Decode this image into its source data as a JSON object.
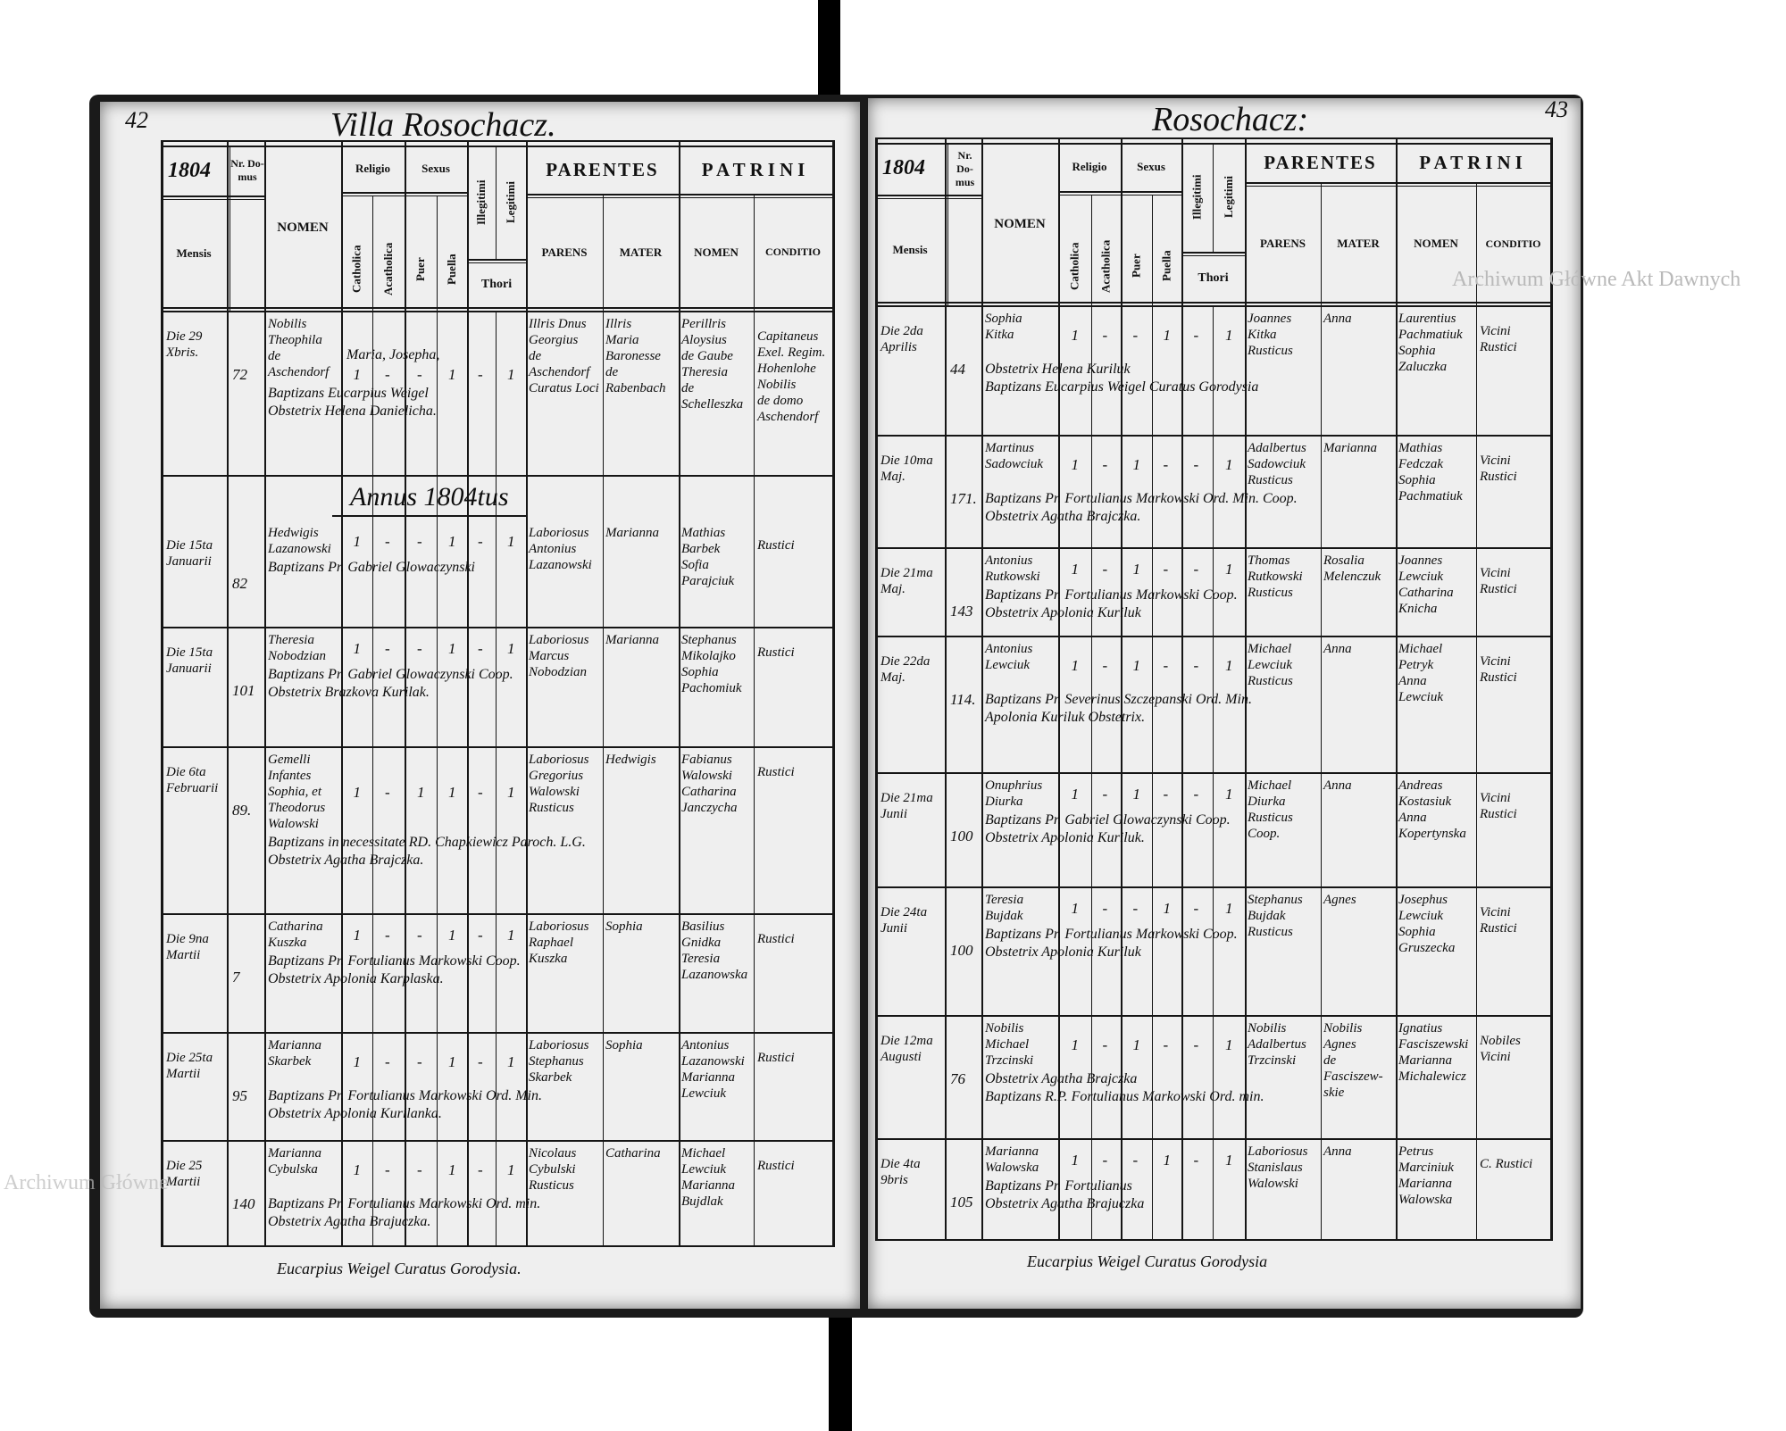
{
  "watermark": "Archiwum Główne Akt Dawnych",
  "watermark_partial": "Archiwum Główne",
  "headers": {
    "nr_domus": "Nr. Do-mus",
    "mensis": "Mensis",
    "nomen": "NOMEN",
    "religio": "Religio",
    "catholica": "Catholica",
    "acatholica": "Acatholica",
    "sexus": "Sexus",
    "puer": "Puer",
    "puella": "Puella",
    "illegitimi": "Illegitimi",
    "legitimi": "Legitimi",
    "thori": "Thori",
    "parentes": "PARENTES",
    "parens": "PARENS",
    "mater": "MATER",
    "patrini": "PATRINI",
    "patrini_nomen": "NOMEN",
    "conditio": "CONDITIO"
  },
  "pages": [
    {
      "page_number": "42",
      "title": "Villa Rosochacz.",
      "year": "1804",
      "signature": "Eucarpius Weigel Curatus Gorodysia.",
      "entries": [
        {
          "mensis": [
            "Die 29",
            "Xbris."
          ],
          "domus": "72",
          "nomen": [
            "Nobilis",
            "Theophila",
            "de",
            "Aschendorf"
          ],
          "extra": "Maria, Josepha,",
          "marks": [
            "1",
            "-",
            "-",
            "1",
            "-",
            "1"
          ],
          "parens": [
            "Illris Dnus",
            "Georgius",
            "de",
            "Aschendorf",
            "Curatus Loci"
          ],
          "mater": [
            "Illris",
            "Maria",
            "Baronesse",
            "de",
            "Rabenbach"
          ],
          "patrini": [
            "Perillris",
            "Aloysius",
            "de Gaube",
            "Theresia",
            "de",
            "Schelleszka"
          ],
          "conditio": [
            "Capitaneus",
            "Exel. Regim.",
            "Hohenlohe",
            "Nobilis",
            "de domo",
            "Aschendorf"
          ],
          "notes": [
            "Baptizans Eucarpius Weigel",
            "Obstetrix Helena Danielicha."
          ]
        },
        {
          "annus": "Annus 1804tus",
          "mensis": [
            "Die 15ta",
            "Januarii"
          ],
          "domus": "82",
          "nomen": [
            "Hedwigis",
            "Lazanowski"
          ],
          "marks": [
            "1",
            "-",
            "-",
            "1",
            "-",
            "1"
          ],
          "parens": [
            "Laboriosus",
            "Antonius",
            "Lazanowski"
          ],
          "mater": [
            "Marianna"
          ],
          "patrini": [
            "Mathias",
            "Barbek",
            "Sofia",
            "Parajciuk"
          ],
          "conditio": [
            "Rustici"
          ],
          "notes": [
            "Baptizans Pr. Gabriel Glowaczynski"
          ]
        },
        {
          "mensis": [
            "Die 15ta",
            "Januarii"
          ],
          "domus": "101",
          "nomen": [
            "Theresia",
            "Nobodzian"
          ],
          "marks": [
            "1",
            "-",
            "-",
            "1",
            "-",
            "1"
          ],
          "parens": [
            "Laboriosus",
            "Marcus",
            "Nobodzian"
          ],
          "mater": [
            "Marianna"
          ],
          "patrini": [
            "Stephanus",
            "Mikolajko",
            "Sophia",
            "Pachomiuk"
          ],
          "conditio": [
            "Rustici"
          ],
          "notes": [
            "Baptizans Pr. Gabriel Glowaczynski Coop.",
            "Obstetrix Brazkova Kurilak."
          ]
        },
        {
          "mensis": [
            "Die 6ta",
            "Februarii"
          ],
          "domus": "89.",
          "nomen": [
            "Gemelli",
            "Infantes",
            "Sophia, et",
            "Theodorus",
            "Walowski"
          ],
          "marks": [
            "1",
            "-",
            "1",
            "1",
            "-",
            "1"
          ],
          "parens": [
            "Laboriosus",
            "Gregorius",
            "Walowski",
            "Rusticus"
          ],
          "mater": [
            "Hedwigis"
          ],
          "patrini": [
            "Fabianus",
            "Walowski",
            "Catharina",
            "Janczycha"
          ],
          "conditio": [
            "Rustici"
          ],
          "notes": [
            "Baptizans in necessitate RD. Chapkiewicz Paroch. L.G.",
            "Obstetrix Agatha Brajczka."
          ]
        },
        {
          "mensis": [
            "Die 9na",
            "Martii"
          ],
          "domus": "7",
          "nomen": [
            "Catharina",
            "Kuszka"
          ],
          "marks": [
            "1",
            "-",
            "-",
            "1",
            "-",
            "1"
          ],
          "parens": [
            "Laboriosus",
            "Raphael",
            "Kuszka"
          ],
          "mater": [
            "Sophia"
          ],
          "patrini": [
            "Basilius",
            "Gnidka",
            "Teresia",
            "Lazanowska"
          ],
          "conditio": [
            "Rustici"
          ],
          "notes": [
            "Baptizans Pr. Fortulianus Markowski Coop.",
            "Obstetrix Apolonia Karplaska."
          ]
        },
        {
          "mensis": [
            "Die 25ta",
            "Martii"
          ],
          "domus": "95",
          "nomen": [
            "Marianna",
            "Skarbek"
          ],
          "marks": [
            "1",
            "-",
            "-",
            "1",
            "-",
            "1"
          ],
          "parens": [
            "Laboriosus",
            "Stephanus",
            "Skarbek"
          ],
          "mater": [
            "Sophia"
          ],
          "patrini": [
            "Antonius",
            "Lazanowski",
            "Marianna",
            "Lewciuk"
          ],
          "conditio": [
            "Rustici"
          ],
          "notes": [
            "Baptizans Pr. Fortulianus Markowski Ord. Min.",
            "Obstetrix Apolonia Kurilanka."
          ]
        },
        {
          "mensis": [
            "Die 25",
            "Martii"
          ],
          "domus": "140",
          "nomen": [
            "Marianna",
            "Cybulska"
          ],
          "marks": [
            "1",
            "-",
            "-",
            "1",
            "-",
            "1"
          ],
          "parens": [
            "Nicolaus",
            "Cybulski",
            "Rusticus"
          ],
          "mater": [
            "Catharina"
          ],
          "patrini": [
            "Michael",
            "Lewciuk",
            "Marianna",
            "Bujdlak"
          ],
          "conditio": [
            "Rustici"
          ],
          "notes": [
            "Baptizans Pr. Fortulianus Markowski Ord. min.",
            "Obstetrix Agatha Brajuczka."
          ]
        }
      ]
    },
    {
      "page_number": "43",
      "title": "Rosochacz:",
      "year": "1804",
      "signature": "Eucarpius Weigel Curatus Gorodysia",
      "entries": [
        {
          "mensis": [
            "Die 2da",
            "Aprilis"
          ],
          "domus": "44",
          "nomen": [
            "Sophia",
            "Kitka"
          ],
          "marks": [
            "1",
            "-",
            "-",
            "1",
            "-",
            "1"
          ],
          "parens": [
            "Joannes",
            "Kitka",
            "Rusticus"
          ],
          "mater": [
            "Anna"
          ],
          "patrini": [
            "Laurentius",
            "Pachmatiuk",
            "Sophia",
            "Zaluczka"
          ],
          "conditio": [
            "Vicini",
            "Rustici"
          ],
          "notes": [
            "Obstetrix Helena Kuriluk",
            "Baptizans Eucarpius Weigel Curatus Gorodysia"
          ]
        },
        {
          "mensis": [
            "Die 10ma",
            "Maj."
          ],
          "domus": "171.",
          "nomen": [
            "Martinus",
            "Sadowciuk"
          ],
          "marks": [
            "1",
            "-",
            "1",
            "-",
            "-",
            "1"
          ],
          "parens": [
            "Adalbertus",
            "Sadowciuk",
            "Rusticus"
          ],
          "mater": [
            "Marianna"
          ],
          "patrini": [
            "Mathias",
            "Fedczak",
            "Sophia",
            "Pachmatiuk"
          ],
          "conditio": [
            "Vicini",
            "Rustici"
          ],
          "notes": [
            "Baptizans Pr. Fortulianus Markowski Ord. Min. Coop.",
            "Obstetrix Agatha Brajczka."
          ]
        },
        {
          "mensis": [
            "Die 21ma",
            "Maj."
          ],
          "domus": "143",
          "nomen": [
            "Antonius",
            "Rutkowski"
          ],
          "marks": [
            "1",
            "-",
            "1",
            "-",
            "-",
            "1"
          ],
          "parens": [
            "Thomas",
            "Rutkowski",
            "Rusticus"
          ],
          "mater": [
            "Rosalia",
            "Melenczuk"
          ],
          "patrini": [
            "Joannes",
            "Lewciuk",
            "Catharina",
            "Knicha"
          ],
          "conditio": [
            "Vicini",
            "Rustici"
          ],
          "notes": [
            "Baptizans Pr. Fortulianus Markowski Coop.",
            "Obstetrix Apolonia Kuriluk"
          ]
        },
        {
          "mensis": [
            "Die 22da",
            "Maj."
          ],
          "domus": "114.",
          "nomen": [
            "Antonius",
            "Lewciuk"
          ],
          "marks": [
            "1",
            "-",
            "1",
            "-",
            "-",
            "1"
          ],
          "parens": [
            "Michael",
            "Lewciuk",
            "Rusticus"
          ],
          "mater": [
            "Anna"
          ],
          "patrini": [
            "Michael",
            "Petryk",
            "Anna",
            "Lewciuk"
          ],
          "conditio": [
            "Vicini",
            "Rustici"
          ],
          "notes": [
            "Baptizans Pr. Severinus Szczepanski Ord. Min.",
            "Apolonia Kuriluk Obstetrix."
          ]
        },
        {
          "mensis": [
            "Die 21ma",
            "Junii"
          ],
          "domus": "100",
          "nomen": [
            "Onuphrius",
            "Diurka"
          ],
          "marks": [
            "1",
            "-",
            "1",
            "-",
            "-",
            "1"
          ],
          "parens": [
            "Michael",
            "Diurka",
            "Rusticus",
            "Coop."
          ],
          "mater": [
            "Anna"
          ],
          "patrini": [
            "Andreas",
            "Kostasiuk",
            "Anna",
            "Kopertynska"
          ],
          "conditio": [
            "Vicini",
            "Rustici"
          ],
          "notes": [
            "Baptizans Pr. Gabriel Glowaczynski Coop.",
            "Obstetrix Apolonia Kuriluk."
          ]
        },
        {
          "mensis": [
            "Die 24ta",
            "Junii"
          ],
          "domus": "100",
          "nomen": [
            "Teresia",
            "Bujdak"
          ],
          "marks": [
            "1",
            "-",
            "-",
            "1",
            "-",
            "1"
          ],
          "parens": [
            "Stephanus",
            "Bujdak",
            "Rusticus"
          ],
          "mater": [
            "Agnes"
          ],
          "patrini": [
            "Josephus",
            "Lewciuk",
            "Sophia",
            "Gruszecka"
          ],
          "conditio": [
            "Vicini",
            "Rustici"
          ],
          "notes": [
            "Baptizans Pr. Fortulianus Markowski Coop.",
            "Obstetrix Apolonia Kuriluk"
          ]
        },
        {
          "mensis": [
            "Die 12ma",
            "Augusti"
          ],
          "domus": "76",
          "nomen": [
            "Nobilis",
            "Michael",
            "Trzcinski"
          ],
          "marks": [
            "1",
            "-",
            "1",
            "-",
            "-",
            "1"
          ],
          "parens": [
            "Nobilis",
            "Adalbertus",
            "Trzcinski"
          ],
          "mater": [
            "Nobilis",
            "Agnes",
            "de",
            "Fasciszew-",
            "skie"
          ],
          "patrini": [
            "Ignatius",
            "Fasciszewski",
            "Marianna",
            "Michalewicz"
          ],
          "conditio": [
            "Nobiles",
            "Vicini"
          ],
          "notes": [
            "Obstetrix Agatha Brajczka",
            "Baptizans R.P. Fortulianus Markowski Ord. min."
          ]
        },
        {
          "mensis": [
            "Die 4ta",
            "9bris"
          ],
          "domus": "105",
          "nomen": [
            "Marianna",
            "Walowska"
          ],
          "marks": [
            "1",
            "-",
            "-",
            "1",
            "-",
            "1"
          ],
          "parens": [
            "Laboriosus",
            "Stanislaus",
            "Walowski"
          ],
          "mater": [
            "Anna"
          ],
          "patrini": [
            "Petrus",
            "Marciniuk",
            "Marianna",
            "Walowska"
          ],
          "conditio": [
            "C. Rustici"
          ],
          "notes": [
            "Baptizans Pr. Fortulianus",
            "Obstetrix Agatha Brajuczka"
          ]
        }
      ]
    }
  ]
}
